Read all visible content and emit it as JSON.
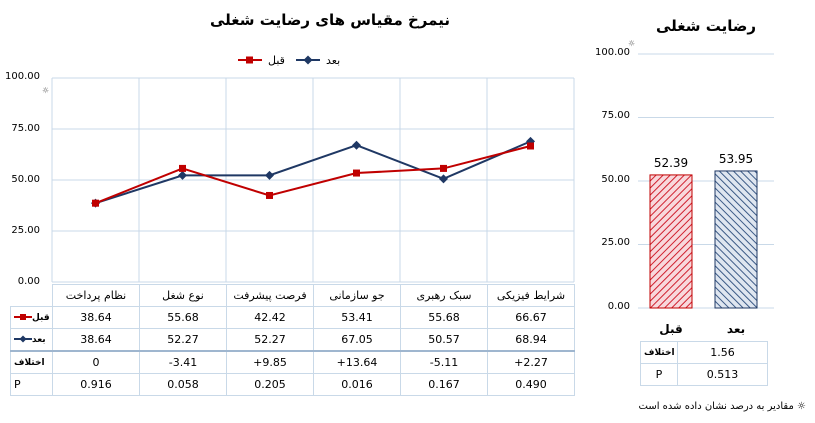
{
  "line_chart": {
    "title": "نیمرخ مقیاس های رضایت شغلی",
    "legend": [
      {
        "label": "قبل",
        "color": "#c00000",
        "marker": "square"
      },
      {
        "label": "بعد",
        "color": "#1f3864",
        "marker": "diamond"
      }
    ],
    "y_ticks": [
      "100.00",
      "75.00",
      "50.00",
      "25.00",
      "0.00"
    ],
    "star": "☼"
  },
  "line_table": {
    "categories": [
      "نظام پرداخت",
      "نوع شغل",
      "فرصت پیشرفت",
      "جو سازمانی",
      "سبک رهبری",
      "شرایط فیزیکی"
    ],
    "row_before_label": "قبل",
    "row_after_label": "بعد",
    "row_diff_label": "اختلاف",
    "row_p_label": "P",
    "before": [
      "38.64",
      "55.68",
      "42.42",
      "53.41",
      "55.68",
      "66.67"
    ],
    "after": [
      "38.64",
      "52.27",
      "52.27",
      "67.05",
      "50.57",
      "68.94"
    ],
    "diff": [
      "0",
      "-3.41",
      "+9.85",
      "+13.64",
      "-5.11",
      "+2.27"
    ],
    "p": [
      "0.916",
      "0.058",
      "0.205",
      "0.016",
      "0.167",
      "0.490"
    ]
  },
  "bar_chart": {
    "title": "رضایت شغلی",
    "y_ticks": [
      "100.00",
      "75.00",
      "50.00",
      "25.00",
      "0.00"
    ],
    "star": "☼",
    "categories": [
      "قبل",
      "بعد"
    ],
    "value_labels": [
      "52.39",
      "53.95"
    ],
    "diff_label": "اختلاف",
    "diff_value": "1.56",
    "p_label": "P",
    "p_value": "0.513"
  },
  "footnote": "☼ مقادیر به درصد نشان داده شده است",
  "chart_data": [
    {
      "type": "line",
      "title": "نیمرخ مقیاس های رضایت شغلی",
      "categories": [
        "نظام پرداخت",
        "نوع شغل",
        "فرصت پیشرفت",
        "جو سازمانی",
        "سبک رهبری",
        "شرایط فیزیکی"
      ],
      "series": [
        {
          "name": "قبل",
          "values": [
            38.64,
            55.68,
            42.42,
            53.41,
            55.68,
            66.67
          ],
          "color": "#c00000"
        },
        {
          "name": "بعد",
          "values": [
            38.64,
            52.27,
            52.27,
            67.05,
            50.57,
            68.94
          ],
          "color": "#1f3864"
        }
      ],
      "ylim": [
        0,
        100
      ],
      "grid": true,
      "legend": "top"
    },
    {
      "type": "bar",
      "title": "رضایت شغلی",
      "categories": [
        "قبل",
        "بعد"
      ],
      "values": [
        52.39,
        53.95
      ],
      "colors": [
        "#c00000",
        "#1f3864"
      ],
      "ylim": [
        0,
        100
      ],
      "grid": true
    }
  ]
}
